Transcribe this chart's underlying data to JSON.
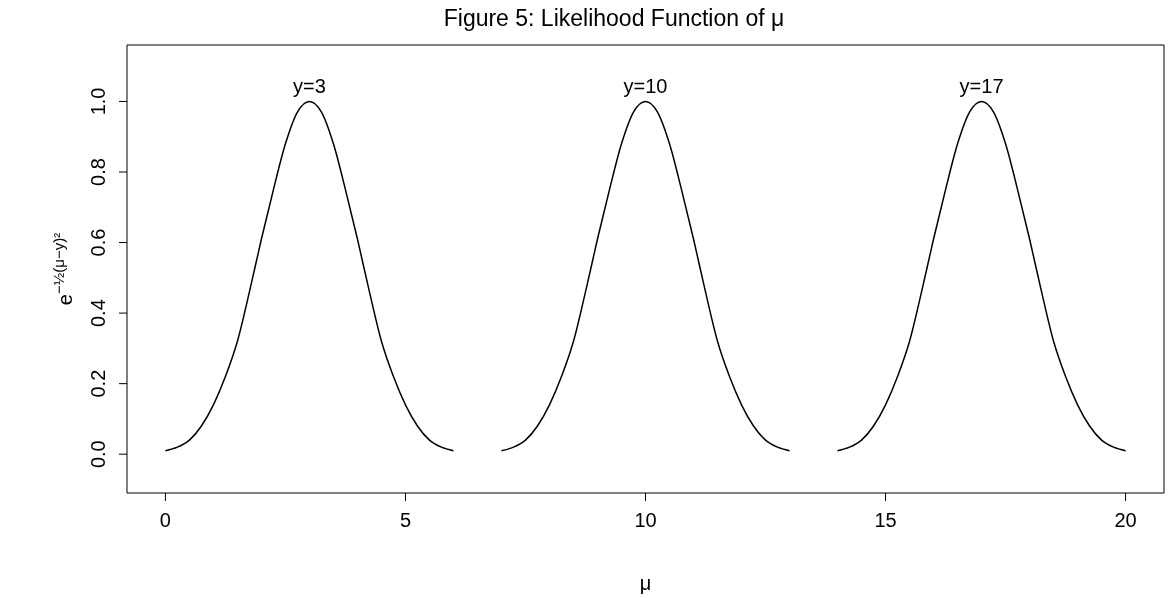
{
  "chart_data": {
    "type": "line",
    "title": "Figure 5: Likelihood Function of μ",
    "xlabel": "μ",
    "ylabel": "e$^{−½(μ−y)²}$",
    "series": [
      {
        "color": "#000000",
        "x": [
          0,
          0.25,
          0.5,
          0.75,
          1,
          1.25,
          1.5,
          1.75,
          2,
          2.25,
          2.5,
          2.75,
          3,
          3.25,
          3.5,
          3.75,
          4,
          4.25,
          4.5,
          4.75,
          5,
          5.25,
          5.5,
          5.75,
          6
        ],
        "values": [
          0.01,
          0.02,
          0.04,
          0.08,
          0.14,
          0.22,
          0.32,
          0.46,
          0.61,
          0.75,
          0.88,
          0.97,
          1,
          0.97,
          0.88,
          0.75,
          0.61,
          0.46,
          0.32,
          0.22,
          0.14,
          0.08,
          0.04,
          0.02,
          0.01
        ]
      },
      {
        "color": "#000000",
        "x": [
          7,
          7.25,
          7.5,
          7.75,
          8,
          8.25,
          8.5,
          8.75,
          9,
          9.25,
          9.5,
          9.75,
          10,
          10.25,
          10.5,
          10.75,
          11,
          11.25,
          11.5,
          11.75,
          12,
          12.25,
          12.5,
          12.75,
          13
        ],
        "values": [
          0.01,
          0.02,
          0.04,
          0.08,
          0.14,
          0.22,
          0.32,
          0.46,
          0.61,
          0.75,
          0.88,
          0.97,
          1,
          0.97,
          0.88,
          0.75,
          0.61,
          0.46,
          0.32,
          0.22,
          0.14,
          0.08,
          0.04,
          0.02,
          0.01
        ]
      },
      {
        "color": "#000000",
        "x": [
          14,
          14.25,
          14.5,
          14.75,
          15,
          15.25,
          15.5,
          15.75,
          16,
          16.25,
          16.5,
          16.75,
          17,
          17.25,
          17.5,
          17.75,
          18,
          18.25,
          18.5,
          18.75,
          19,
          19.25,
          19.5,
          19.75,
          20
        ],
        "values": [
          0.01,
          0.02,
          0.04,
          0.08,
          0.14,
          0.22,
          0.32,
          0.46,
          0.61,
          0.75,
          0.88,
          0.97,
          1,
          0.97,
          0.88,
          0.75,
          0.61,
          0.46,
          0.32,
          0.22,
          0.14,
          0.08,
          0.04,
          0.02,
          0.01
        ]
      }
    ],
    "annotations": [
      {
        "text": "y=3",
        "x": 3,
        "y": 1
      },
      {
        "text": "y=10",
        "x": 10,
        "y": 1
      },
      {
        "text": "y=17",
        "x": 17,
        "y": 1
      }
    ],
    "xlim": [
      -0.8,
      20.8
    ],
    "xticks": [
      0,
      5,
      10,
      15,
      20
    ],
    "ylim": [
      -0.11,
      1.16
    ],
    "yticks": [
      {
        "value": 0,
        "label": "0.0"
      },
      0.2,
      0.4,
      0.6,
      0.8,
      {
        "value": 1,
        "label": "1.0"
      }
    ],
    "grid": false,
    "marker": "none",
    "line_style": "solid"
  }
}
